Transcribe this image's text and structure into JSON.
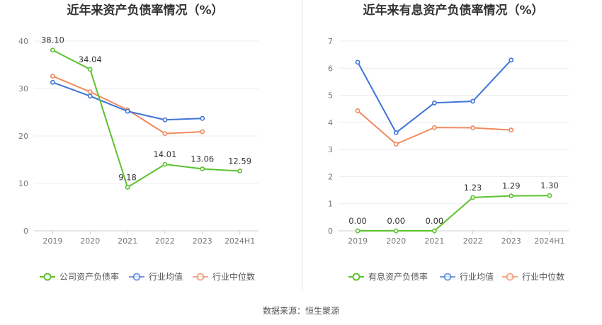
{
  "source_label": "数据来源：恒生聚源",
  "chart_data": [
    {
      "type": "line",
      "title": "近年来资产负债率情况（%）",
      "x": [
        "2019",
        "2020",
        "2021",
        "2022",
        "2023",
        "2024H1"
      ],
      "ylim": [
        0,
        40
      ],
      "yticks": [
        0,
        10,
        20,
        30,
        40
      ],
      "grid": true,
      "legend_position": "bottom",
      "series": [
        {
          "name": "公司资产负债率",
          "color": "#5cc22e",
          "values": [
            38.1,
            34.04,
            9.18,
            14.01,
            13.06,
            12.59
          ],
          "labels": [
            "38.10",
            "34.04",
            "9.18",
            "14.01",
            "13.06",
            "12.59"
          ]
        },
        {
          "name": "行业均值",
          "color": "#3f74d8",
          "values": [
            31.3,
            28.4,
            25.2,
            23.4,
            23.7,
            null
          ]
        },
        {
          "name": "行业中位数",
          "color": "#f08a5d",
          "values": [
            32.6,
            29.3,
            25.5,
            20.5,
            20.9,
            null
          ]
        }
      ]
    },
    {
      "type": "line",
      "title": "近年来有息资产负债率情况（%）",
      "x": [
        "2019",
        "2020",
        "2021",
        "2022",
        "2023",
        "2024H1"
      ],
      "ylim": [
        0,
        7
      ],
      "yticks": [
        0,
        1,
        2,
        3,
        4,
        5,
        6,
        7
      ],
      "grid": true,
      "legend_position": "bottom",
      "series": [
        {
          "name": "有息资产负债率",
          "color": "#5cc22e",
          "values": [
            0.0,
            0.0,
            0.0,
            1.23,
            1.29,
            1.3
          ],
          "labels": [
            "0.00",
            "0.00",
            "0.00",
            "1.23",
            "1.29",
            "1.30"
          ]
        },
        {
          "name": "行业均值",
          "color": "#3f74d8",
          "values": [
            6.22,
            3.62,
            4.72,
            4.78,
            6.3,
            null
          ]
        },
        {
          "name": "行业中位数",
          "color": "#f08a5d",
          "values": [
            4.43,
            3.2,
            3.81,
            3.8,
            3.72,
            null
          ]
        }
      ]
    }
  ]
}
